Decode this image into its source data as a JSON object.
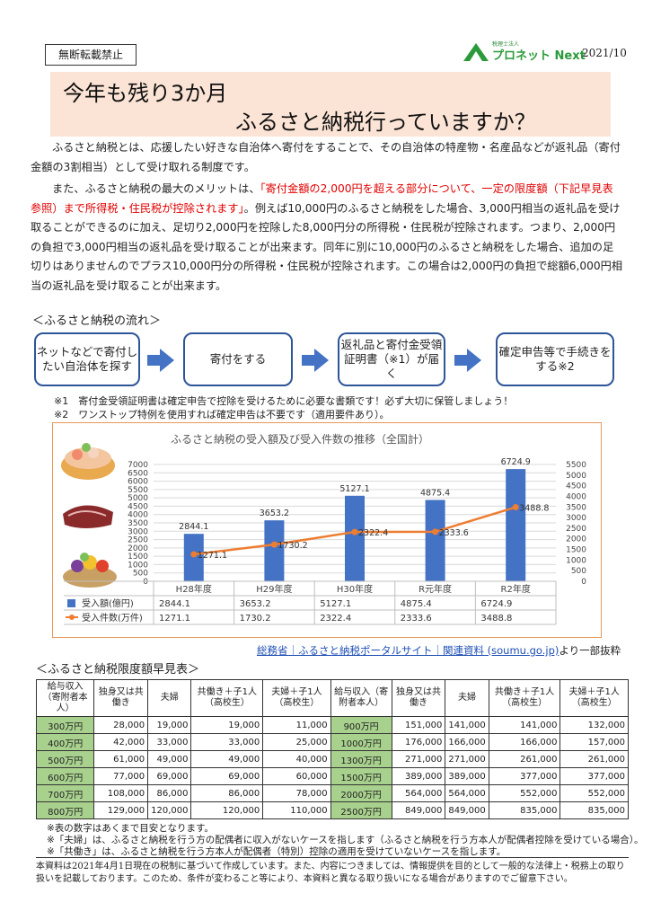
{
  "header": {
    "notice": "無断転載禁止",
    "logo_small": "税理士法人",
    "logo_text": "プロネット Next",
    "date": "2021/10"
  },
  "title": {
    "line1": "今年も残り3か月",
    "line2": "ふるさと納税行っていますか？"
  },
  "intro": {
    "p1": "ふるさと納税とは、応援したい好きな自治体へ寄付をすることで、その自治体の特産物・名産品などが返礼品（寄付金額の3割相当）として受け取れる制度です。",
    "p2_before": "また、ふるさと納税の最大のメリットは、",
    "p2_red": "「寄付金額の2,000円を超える部分について、一定の限度額（下記早見表参照）まで所得税・住民税が控除されます」",
    "p2_after": "。例えば10,000円のふるさと納税をした場合、3,000円相当の返礼品を受け取ることができるのに加え、足切り2,000円を控除した8,000円分の所得税・住民税が控除されます。つまり、2,000円の負担で3,000円相当の返礼品を受け取ることが出来ます。同年に別に10,000円のふるさと納税をした場合、追加の足切りはありませんのでプラス10,000円分の所得税・住民税が控除されます。この場合は2,000円の負担で総額6,000円相当の返礼品を受け取ることが出来ます。"
  },
  "flow": {
    "title": "＜ふるさと納税の流れ＞",
    "steps": [
      "ネットなどで寄付したい自治体を探す",
      "寄付をする",
      "返礼品と寄付金受領証明書（※1）が届く",
      "確定申告等で手続きをする※2"
    ],
    "notes": [
      "※1　寄付金受領証明書は確定申告で控除を受けるために必要な書類です！必ず大切に保管しましょう！",
      "※2　ワンストップ特例を使用すれば確定申告は不要です（適用要件あり）。"
    ]
  },
  "chart_data": {
    "type": "bar",
    "title": "ふるさと納税の受入額及び受入件数の推移（全国計）",
    "categories": [
      "H28年度",
      "H29年度",
      "H30年度",
      "R元年度",
      "R2年度"
    ],
    "series": [
      {
        "name": "受入額(億円)",
        "type": "bar",
        "axis": "left",
        "color": "#4472c4",
        "values": [
          2844.1,
          3653.2,
          5127.1,
          4875.4,
          6724.9
        ]
      },
      {
        "name": "受入件数(万件)",
        "type": "line",
        "axis": "right",
        "color": "#ed7d31",
        "values": [
          1271.1,
          1730.2,
          2322.4,
          2333.6,
          3488.8
        ]
      }
    ],
    "y_left": {
      "min": 0,
      "max": 7000,
      "step": 500
    },
    "y_right": {
      "min": 0,
      "max": 5500,
      "step": 500
    },
    "legend": "data-table"
  },
  "source": {
    "link": "総務省｜ふるさと納税ポータルサイト｜関連資料 (soumu.go.jp)",
    "suffix": "より一部抜粋"
  },
  "table": {
    "title": "＜ふるさと納税限度額早見表＞",
    "headers": [
      "給与収入（寄附者本人）",
      "独身又は共働き",
      "夫婦",
      "共働き＋子1人（高校生）",
      "夫婦＋子1人（高校生）",
      "給与収入（寄附者本人）",
      "独身又は共働き",
      "夫婦",
      "共働き＋子1人（高校生）",
      "夫婦＋子1人（高校生）"
    ],
    "rows": [
      [
        "300万円",
        "28,000",
        "19,000",
        "19,000",
        "11,000",
        "900万円",
        "151,000",
        "141,000",
        "141,000",
        "132,000"
      ],
      [
        "400万円",
        "42,000",
        "33,000",
        "33,000",
        "25,000",
        "1000万円",
        "176,000",
        "166,000",
        "166,000",
        "157,000"
      ],
      [
        "500万円",
        "61,000",
        "49,000",
        "49,000",
        "40,000",
        "1300万円",
        "271,000",
        "271,000",
        "261,000",
        "261,000"
      ],
      [
        "600万円",
        "77,000",
        "69,000",
        "69,000",
        "60,000",
        "1500万円",
        "389,000",
        "389,000",
        "377,000",
        "377,000"
      ],
      [
        "700万円",
        "108,000",
        "86,000",
        "86,000",
        "78,000",
        "2000万円",
        "564,000",
        "564,000",
        "552,000",
        "552,000"
      ],
      [
        "800万円",
        "129,000",
        "120,000",
        "120,000",
        "110,000",
        "2500万円",
        "849,000",
        "849,000",
        "835,000",
        "835,000"
      ]
    ],
    "notes": [
      "※表の数字はあくまで目安となります。",
      "※「夫婦」は、ふるさと納税を行う方の配偶者に収入がないケースを指します（ふるさと納税を行う方本人が配偶者控除を受けている場合）。",
      "※「共働き」は、ふるさと納税を行う方本人が配偶者（特別）控除の適用を受けていないケースを指します。"
    ]
  },
  "disclaimer": "本資料は2021年4月1日現在の税制に基づいて作成しています。また、内容につきましては、情報提供を目的として一般的な法律上・税務上の取り扱いを記載しております。このため、条件が変わること等により、本資料と異なる取り扱いになる場合がありますのでご留意下さい。"
}
